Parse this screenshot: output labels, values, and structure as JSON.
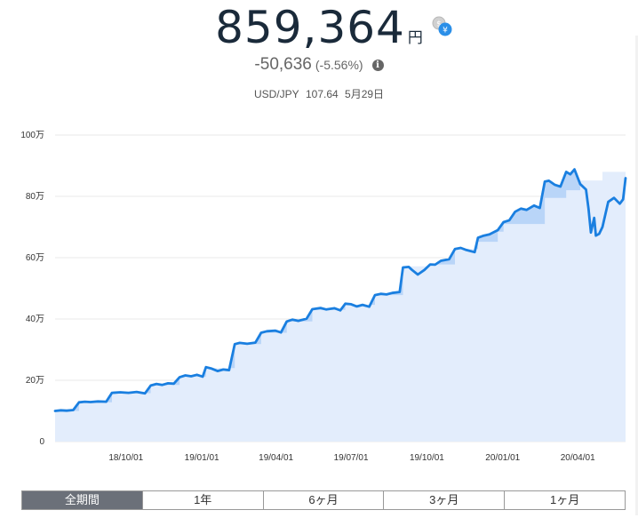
{
  "header": {
    "total_value": "859,364",
    "currency_unit": "円",
    "change_amount": "-50,636",
    "change_percent": "(-5.56%)",
    "info_icon_glyph": "i",
    "rate_pair": "USD/JPY",
    "rate_value": "107.64",
    "rate_date": "5月29日"
  },
  "tabs": [
    {
      "label": "全期間",
      "active": true
    },
    {
      "label": "1年",
      "active": false
    },
    {
      "label": "6ヶ月",
      "active": false
    },
    {
      "label": "3ヶ月",
      "active": false
    },
    {
      "label": "1ヶ月",
      "active": false
    }
  ],
  "colors": {
    "line": "#1a7fe0",
    "area_total": "#e3edfc",
    "area_gain": "#b9d5f8"
  },
  "chart_data": {
    "type": "line",
    "y_tick_labels": [
      "0",
      "20万",
      "40万",
      "60万",
      "80万",
      "100万"
    ],
    "y_ticks": [
      0,
      200000,
      400000,
      600000,
      800000,
      1000000
    ],
    "ylim": [
      0,
      1000000
    ],
    "x_tick_labels": [
      "18/10/01",
      "19/01/01",
      "19/04/01",
      "19/07/01",
      "19/10/01",
      "20/01/01",
      "20/04/01"
    ],
    "x_ticks": [
      "2018-10-01",
      "2019-01-01",
      "2019-04-01",
      "2019-07-01",
      "2019-10-01",
      "2020-01-01",
      "2020-04-01"
    ],
    "xlim": [
      "2018-07-07",
      "2020-05-29"
    ],
    "grid": true,
    "series": [
      {
        "values": [
          [
            "2018-07-07",
            100000
          ],
          [
            "2018-07-14",
            102000
          ],
          [
            "2018-07-21",
            101000
          ],
          [
            "2018-07-29",
            103000
          ],
          [
            "2018-08-05",
            128000
          ],
          [
            "2018-08-12",
            130000
          ],
          [
            "2018-08-19",
            129000
          ],
          [
            "2018-08-28",
            131000
          ],
          [
            "2018-09-07",
            130000
          ],
          [
            "2018-09-14",
            159000
          ],
          [
            "2018-09-24",
            161000
          ],
          [
            "2018-10-04",
            159000
          ],
          [
            "2018-10-14",
            162000
          ],
          [
            "2018-10-24",
            157000
          ],
          [
            "2018-10-31",
            183000
          ],
          [
            "2018-11-07",
            188000
          ],
          [
            "2018-11-14",
            185000
          ],
          [
            "2018-11-21",
            190000
          ],
          [
            "2018-11-28",
            189000
          ],
          [
            "2018-12-05",
            210000
          ],
          [
            "2018-12-12",
            216000
          ],
          [
            "2018-12-19",
            213000
          ],
          [
            "2018-12-26",
            218000
          ],
          [
            "2019-01-02",
            212000
          ],
          [
            "2019-01-06",
            243000
          ],
          [
            "2019-01-13",
            238000
          ],
          [
            "2019-01-20",
            230000
          ],
          [
            "2019-01-27",
            235000
          ],
          [
            "2019-02-03",
            233000
          ],
          [
            "2019-02-10",
            318000
          ],
          [
            "2019-02-16",
            322000
          ],
          [
            "2019-02-25",
            319000
          ],
          [
            "2019-03-07",
            323000
          ],
          [
            "2019-03-14",
            355000
          ],
          [
            "2019-03-21",
            360000
          ],
          [
            "2019-03-31",
            362000
          ],
          [
            "2019-04-07",
            356000
          ],
          [
            "2019-04-14",
            392000
          ],
          [
            "2019-04-21",
            398000
          ],
          [
            "2019-04-28",
            394000
          ],
          [
            "2019-05-08",
            401000
          ],
          [
            "2019-05-15",
            432000
          ],
          [
            "2019-05-25",
            436000
          ],
          [
            "2019-06-01",
            431000
          ],
          [
            "2019-06-11",
            435000
          ],
          [
            "2019-06-18",
            428000
          ],
          [
            "2019-06-24",
            450000
          ],
          [
            "2019-07-01",
            448000
          ],
          [
            "2019-07-08",
            441000
          ],
          [
            "2019-07-15",
            446000
          ],
          [
            "2019-07-23",
            440000
          ],
          [
            "2019-07-30",
            478000
          ],
          [
            "2019-08-06",
            482000
          ],
          [
            "2019-08-13",
            480000
          ],
          [
            "2019-08-20",
            485000
          ],
          [
            "2019-08-29",
            488000
          ],
          [
            "2019-09-02",
            568000
          ],
          [
            "2019-09-09",
            570000
          ],
          [
            "2019-09-13",
            560000
          ],
          [
            "2019-09-20",
            545000
          ],
          [
            "2019-09-28",
            560000
          ],
          [
            "2019-10-05",
            578000
          ],
          [
            "2019-10-11",
            577000
          ],
          [
            "2019-10-18",
            590000
          ],
          [
            "2019-10-28",
            595000
          ],
          [
            "2019-11-04",
            628000
          ],
          [
            "2019-11-11",
            632000
          ],
          [
            "2019-11-18",
            625000
          ],
          [
            "2019-11-28",
            618000
          ],
          [
            "2019-12-02",
            665000
          ],
          [
            "2019-12-09",
            672000
          ],
          [
            "2019-12-16",
            676000
          ],
          [
            "2019-12-26",
            690000
          ],
          [
            "2020-01-02",
            716000
          ],
          [
            "2020-01-09",
            722000
          ],
          [
            "2020-01-16",
            750000
          ],
          [
            "2020-01-23",
            760000
          ],
          [
            "2020-01-30",
            756000
          ],
          [
            "2020-02-08",
            770000
          ],
          [
            "2020-02-15",
            762000
          ],
          [
            "2020-02-21",
            848000
          ],
          [
            "2020-02-26",
            851000
          ],
          [
            "2020-03-04",
            838000
          ],
          [
            "2020-03-11",
            832000
          ],
          [
            "2020-03-18",
            880000
          ],
          [
            "2020-03-23",
            872000
          ],
          [
            "2020-03-28",
            888000
          ],
          [
            "2020-04-04",
            840000
          ],
          [
            "2020-04-11",
            822000
          ],
          [
            "2020-04-14",
            760000
          ],
          [
            "2020-04-17",
            682000
          ],
          [
            "2020-04-21",
            730000
          ],
          [
            "2020-04-23",
            672000
          ],
          [
            "2020-04-27",
            678000
          ],
          [
            "2020-05-01",
            700000
          ],
          [
            "2020-05-08",
            782000
          ],
          [
            "2020-05-15",
            795000
          ],
          [
            "2020-05-22",
            776000
          ],
          [
            "2020-05-26",
            790000
          ],
          [
            "2020-05-29",
            859364
          ]
        ]
      },
      {
        "values": [
          [
            "2018-07-07",
            100000
          ],
          [
            "2018-08-05",
            128000
          ],
          [
            "2018-09-14",
            158000
          ],
          [
            "2018-10-31",
            185000
          ],
          [
            "2018-12-05",
            212000
          ],
          [
            "2019-01-06",
            240000
          ],
          [
            "2019-02-10",
            318000
          ],
          [
            "2019-03-14",
            355000
          ],
          [
            "2019-04-14",
            392000
          ],
          [
            "2019-05-15",
            430000
          ],
          [
            "2019-06-24",
            446000
          ],
          [
            "2019-07-30",
            478000
          ],
          [
            "2019-09-02",
            572000
          ],
          [
            "2019-10-05",
            578000
          ],
          [
            "2019-11-04",
            628000
          ],
          [
            "2019-12-02",
            652000
          ],
          [
            "2019-12-26",
            685000
          ],
          [
            "2020-01-02",
            710000
          ],
          [
            "2020-02-21",
            795000
          ],
          [
            "2020-03-18",
            820000
          ],
          [
            "2020-04-04",
            852000
          ],
          [
            "2020-05-01",
            880000
          ],
          [
            "2020-05-29",
            910000
          ]
        ]
      }
    ]
  }
}
